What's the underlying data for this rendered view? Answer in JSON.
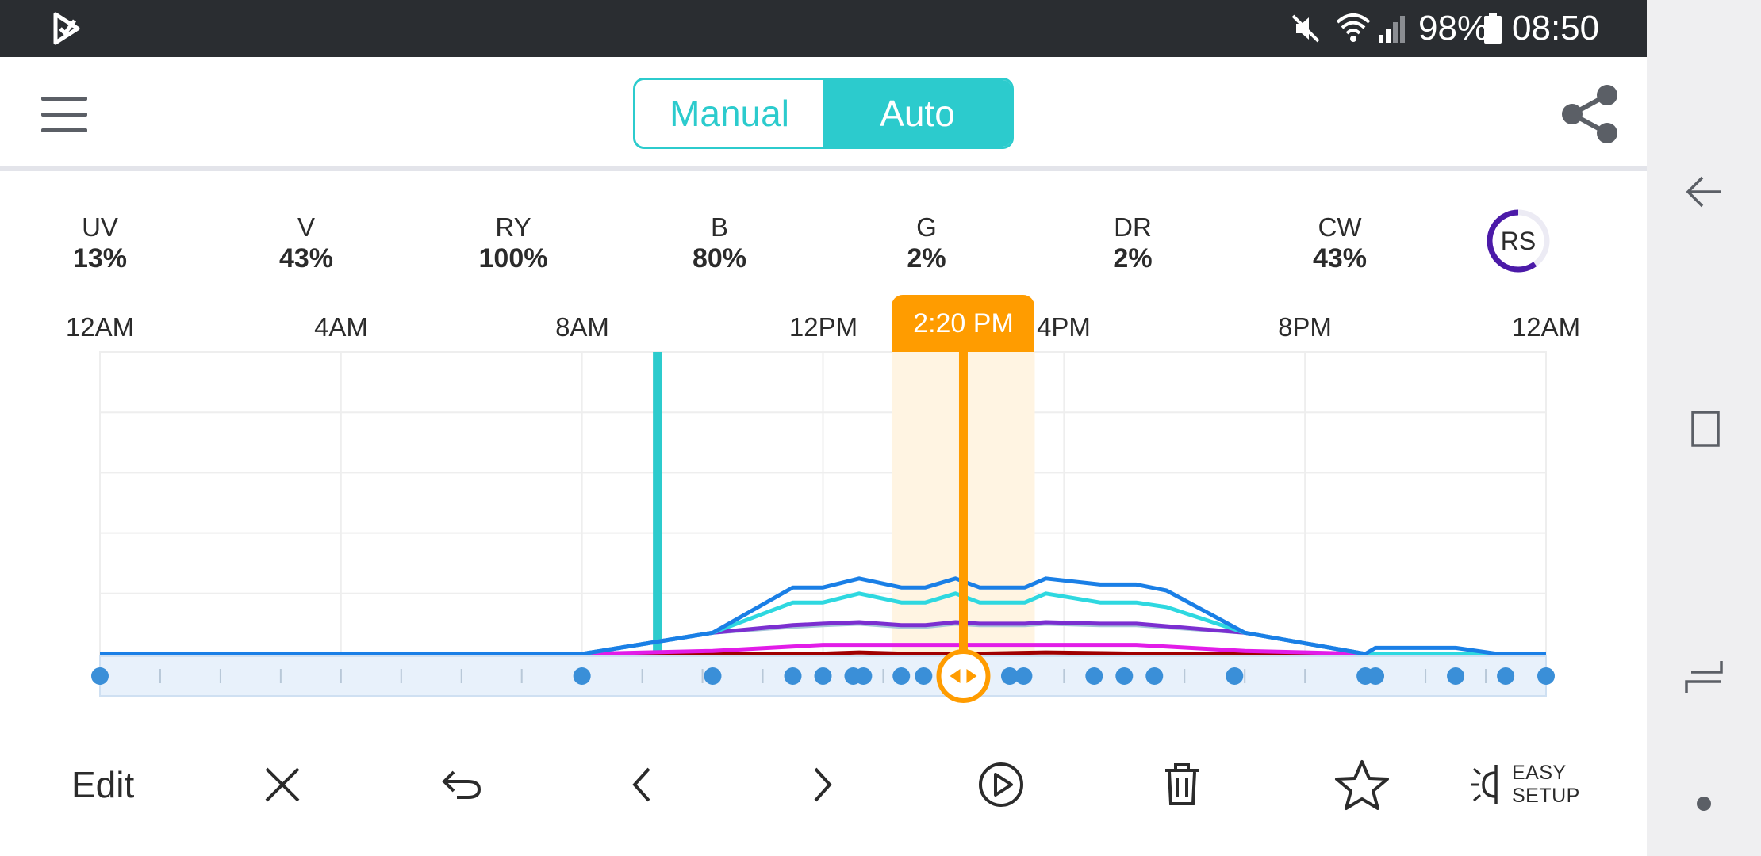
{
  "status_bar": {
    "battery_pct": "98%",
    "clock": "08:50",
    "icons": [
      "app-logo-icon",
      "mute-icon",
      "wifi-icon",
      "signal-icon",
      "battery-icon"
    ]
  },
  "header": {
    "modes": {
      "manual_label": "Manual",
      "auto_label": "Auto",
      "selected": "Auto"
    },
    "menu_icon": "hamburger-menu-icon",
    "share_icon": "share-icon"
  },
  "channels": [
    {
      "name": "UV",
      "value": "13%"
    },
    {
      "name": "V",
      "value": "43%"
    },
    {
      "name": "RY",
      "value": "100%"
    },
    {
      "name": "B",
      "value": "80%"
    },
    {
      "name": "G",
      "value": "2%"
    },
    {
      "name": "DR",
      "value": "2%"
    },
    {
      "name": "CW",
      "value": "43%"
    }
  ],
  "rs_badge": {
    "label": "RS",
    "progress": 0.6,
    "color": "#4b1aa8"
  },
  "schedule": {
    "current_time_label": "2:20 PM",
    "current_time_hours": 14.33,
    "now_marker_hours": 9.25,
    "time_ticks": [
      "12AM",
      "4AM",
      "8AM",
      "12PM",
      "4PM",
      "8PM",
      "12AM"
    ],
    "colors": {
      "accent": "#2ccbcd",
      "cursor": "#ff9c00",
      "point": "#3a8fd8"
    }
  },
  "chart_data": {
    "type": "line",
    "x_unit": "hours",
    "xlim": [
      0,
      24
    ],
    "ylim": [
      0,
      100
    ],
    "series": [
      {
        "color": "#1a7fe6",
        "points": [
          [
            0,
            0
          ],
          [
            8,
            0
          ],
          [
            10.17,
            7
          ],
          [
            11.5,
            22
          ],
          [
            12,
            22
          ],
          [
            12.6,
            25
          ],
          [
            13.3,
            22
          ],
          [
            13.7,
            22
          ],
          [
            14.2,
            25
          ],
          [
            14.6,
            22
          ],
          [
            15.35,
            22
          ],
          [
            15.7,
            25
          ],
          [
            16.6,
            23
          ],
          [
            17.2,
            23
          ],
          [
            17.7,
            21
          ],
          [
            19,
            7
          ],
          [
            21,
            0
          ],
          [
            21.17,
            2
          ],
          [
            22.5,
            2
          ],
          [
            23.2,
            0
          ],
          [
            24,
            0
          ]
        ]
      },
      {
        "color": "#2ed8e0",
        "points": [
          [
            0,
            0
          ],
          [
            8,
            0
          ],
          [
            10.17,
            7
          ],
          [
            11.5,
            17
          ],
          [
            12,
            17
          ],
          [
            12.6,
            20
          ],
          [
            13.3,
            17
          ],
          [
            13.7,
            17
          ],
          [
            14.2,
            20
          ],
          [
            14.6,
            17
          ],
          [
            15.35,
            17
          ],
          [
            15.7,
            20
          ],
          [
            16.6,
            17
          ],
          [
            17.2,
            17
          ],
          [
            17.7,
            15.5
          ],
          [
            19,
            7
          ],
          [
            21,
            0
          ],
          [
            24,
            0
          ]
        ]
      },
      {
        "color": "#7b2fd0",
        "points": [
          [
            0,
            0
          ],
          [
            8,
            0
          ],
          [
            10.17,
            7
          ],
          [
            11.5,
            9.5
          ],
          [
            12,
            10
          ],
          [
            12.6,
            10.5
          ],
          [
            13.3,
            9.5
          ],
          [
            13.7,
            9.5
          ],
          [
            14.2,
            10.5
          ],
          [
            14.6,
            10
          ],
          [
            15.35,
            10
          ],
          [
            15.7,
            10.5
          ],
          [
            16.6,
            10
          ],
          [
            17.2,
            10
          ],
          [
            19,
            7
          ],
          [
            21,
            0
          ],
          [
            24,
            0
          ]
        ]
      },
      {
        "color": "#a7c6d9",
        "points": [
          [
            0,
            0
          ],
          [
            8,
            0
          ],
          [
            10.17,
            7
          ],
          [
            11.5,
            9
          ],
          [
            12,
            9.5
          ],
          [
            12.6,
            10
          ],
          [
            13.3,
            9
          ],
          [
            13.7,
            9
          ],
          [
            14.2,
            10
          ],
          [
            14.6,
            9.5
          ],
          [
            15.35,
            9.5
          ],
          [
            15.7,
            10
          ],
          [
            16.6,
            9.5
          ],
          [
            17.2,
            9.5
          ],
          [
            19,
            7
          ],
          [
            21,
            0
          ],
          [
            24,
            0
          ]
        ]
      },
      {
        "color": "#e21ce8",
        "points": [
          [
            0,
            0
          ],
          [
            8,
            0
          ],
          [
            10.17,
            1
          ],
          [
            12,
            3
          ],
          [
            17.2,
            3
          ],
          [
            19,
            1
          ],
          [
            21,
            0
          ],
          [
            24,
            0
          ]
        ]
      },
      {
        "color": "#a00000",
        "points": [
          [
            0,
            0
          ],
          [
            8,
            0
          ],
          [
            12,
            0.1
          ],
          [
            12.6,
            0.5
          ],
          [
            13.3,
            0.1
          ],
          [
            14.6,
            0.1
          ],
          [
            15.7,
            0.5
          ],
          [
            17.2,
            0.1
          ],
          [
            21,
            0
          ],
          [
            24,
            0
          ]
        ]
      }
    ],
    "keyframe_hours": [
      0,
      8,
      10.17,
      11.5,
      12,
      12.5,
      12.67,
      13.3,
      13.67,
      15.1,
      15.33,
      16.5,
      17,
      17.5,
      18.83,
      21,
      21.17,
      22.5,
      23.33,
      24
    ]
  },
  "toolbar": {
    "edit_label": "Edit",
    "easy_setup_line1": "EASY",
    "easy_setup_line2": "SETUP",
    "icons": [
      "close-icon",
      "undo-icon",
      "previous-icon",
      "next-icon",
      "play-icon",
      "delete-icon",
      "favorite-icon",
      "easy-setup-icon"
    ]
  }
}
